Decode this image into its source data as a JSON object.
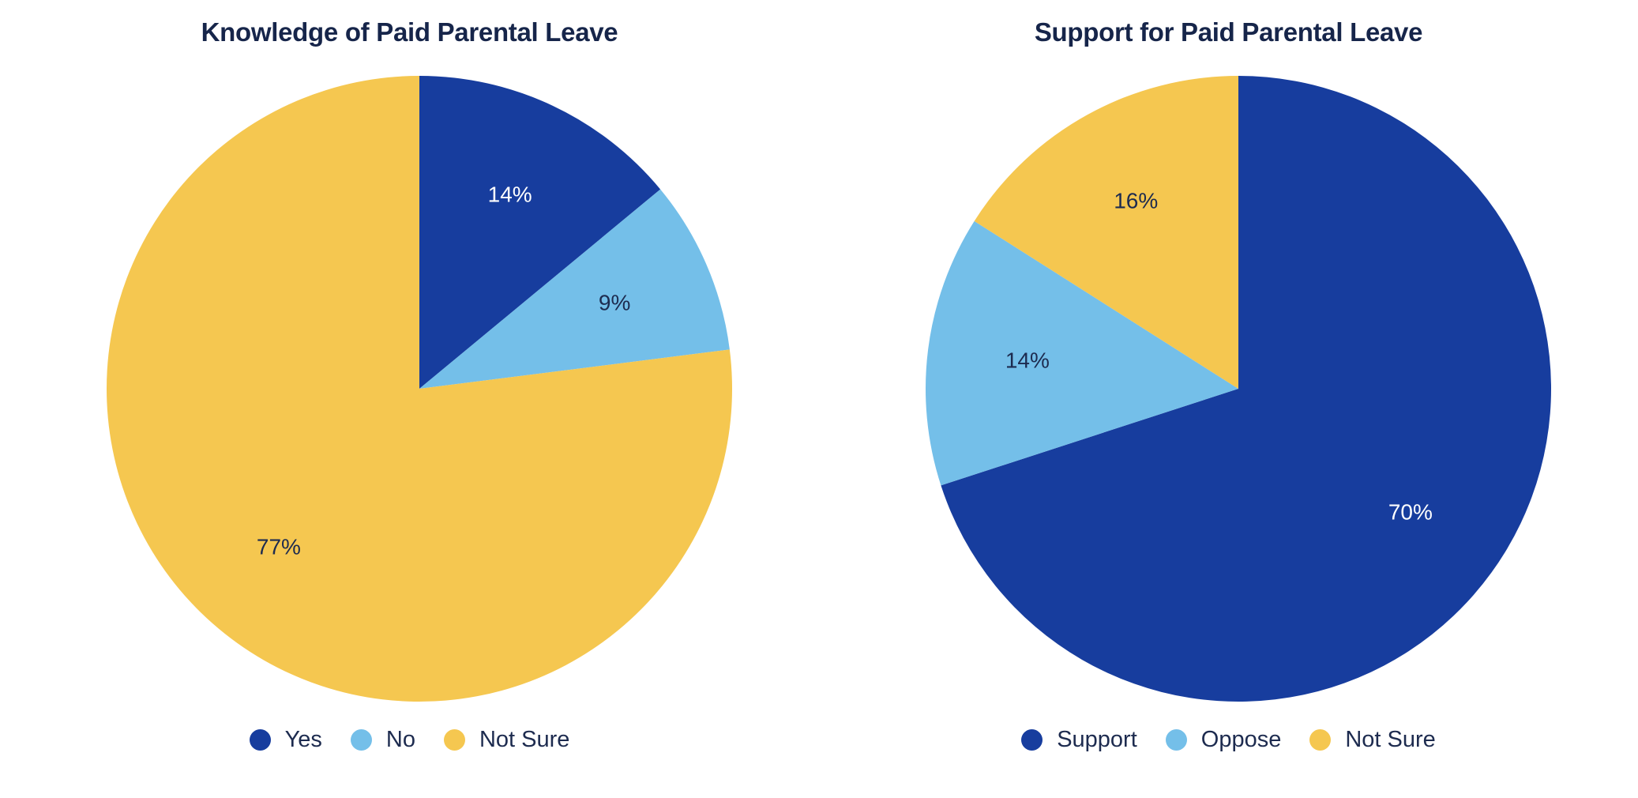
{
  "colors": {
    "dark_blue": "#173d9e",
    "light_blue": "#74bfe9",
    "yellow": "#f5c750",
    "label_light": "#ffffff",
    "label_dark": "#1d2b4f"
  },
  "chart_data": [
    {
      "type": "pie",
      "title": "Knowledge of Paid Parental Leave",
      "legend_position": "bottom",
      "start_angle": "12 o'clock",
      "direction": "clockwise",
      "slices": [
        {
          "label": "Yes",
          "value": 14,
          "display": "14%",
          "color": "#173d9e",
          "label_color": "#ffffff"
        },
        {
          "label": "No",
          "value": 9,
          "display": "9%",
          "color": "#74bfe9",
          "label_color": "#1d2b4f"
        },
        {
          "label": "Not Sure",
          "value": 77,
          "display": "77%",
          "color": "#f5c750",
          "label_color": "#1d2b4f"
        }
      ]
    },
    {
      "type": "pie",
      "title": "Support for Paid Parental Leave",
      "legend_position": "bottom",
      "start_angle": "12 o'clock",
      "direction": "clockwise",
      "slices": [
        {
          "label": "Support",
          "value": 70,
          "display": "70%",
          "color": "#173d9e",
          "label_color": "#ffffff"
        },
        {
          "label": "Oppose",
          "value": 14,
          "display": "14%",
          "color": "#74bfe9",
          "label_color": "#1d2b4f"
        },
        {
          "label": "Not Sure",
          "value": 16,
          "display": "16%",
          "color": "#f5c750",
          "label_color": "#1d2b4f"
        }
      ]
    }
  ]
}
